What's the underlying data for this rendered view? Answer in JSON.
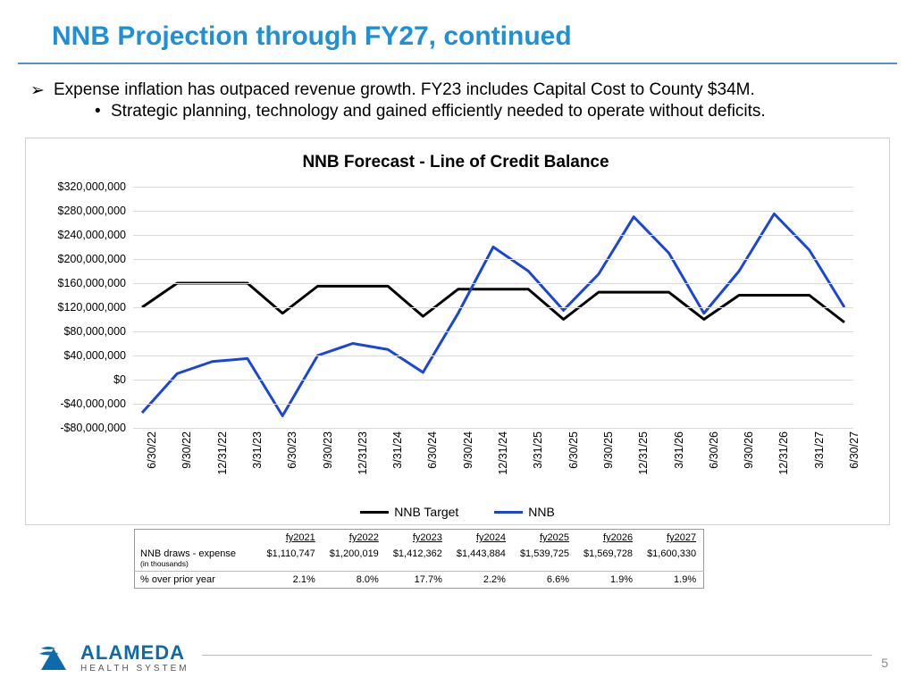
{
  "title": "NNB Projection through FY27, continued",
  "title_color": "#1f8fd6",
  "rule_color": "#5b8fc9",
  "bullets": {
    "b1": "Expense inflation has outpaced revenue growth. FY23 includes Capital Cost to County $34M.",
    "b2": "Strategic planning, technology and gained efficiently needed to operate without deficits."
  },
  "chart": {
    "title": "NNB Forecast - Line of Credit Balance",
    "title_font_size": 19,
    "y_min": -80000000,
    "y_max": 320000000,
    "y_ticks": [
      {
        "v": 320000000,
        "label": "$320,000,000"
      },
      {
        "v": 280000000,
        "label": "$280,000,000"
      },
      {
        "v": 240000000,
        "label": "$240,000,000"
      },
      {
        "v": 200000000,
        "label": "$200,000,000"
      },
      {
        "v": 160000000,
        "label": "$160,000,000"
      },
      {
        "v": 120000000,
        "label": "$120,000,000"
      },
      {
        "v": 80000000,
        "label": "$80,000,000"
      },
      {
        "v": 40000000,
        "label": "$40,000,000"
      },
      {
        "v": 0,
        "label": "$0"
      },
      {
        "v": -40000000,
        "label": "-$40,000,000"
      },
      {
        "v": -80000000,
        "label": "-$80,000,000"
      }
    ],
    "x_labels": [
      "6/30/22",
      "9/30/22",
      "12/31/22",
      "3/31/23",
      "6/30/23",
      "9/30/23",
      "12/31/23",
      "3/31/24",
      "6/30/24",
      "9/30/24",
      "12/31/24",
      "3/31/25",
      "6/30/25",
      "9/30/25",
      "12/31/25",
      "3/31/26",
      "6/30/26",
      "9/30/26",
      "12/31/26",
      "3/31/27",
      "6/30/27"
    ],
    "series": {
      "target": {
        "label": "NNB Target",
        "color": "#000000",
        "width": 3,
        "values": [
          120000000,
          160000000,
          160000000,
          160000000,
          110000000,
          155000000,
          155000000,
          155000000,
          105000000,
          150000000,
          150000000,
          150000000,
          100000000,
          145000000,
          145000000,
          145000000,
          100000000,
          140000000,
          140000000,
          140000000,
          95000000
        ]
      },
      "nnb": {
        "label": "NNB",
        "color": "#1846d6",
        "width": 3,
        "values": [
          -55000000,
          10000000,
          30000000,
          35000000,
          -60000000,
          40000000,
          60000000,
          50000000,
          12000000,
          110000000,
          220000000,
          180000000,
          115000000,
          175000000,
          270000000,
          210000000,
          110000000,
          180000000,
          275000000,
          215000000,
          120000000
        ]
      }
    },
    "grid_color": "#d9d9d9",
    "axis_font_size": 12.5
  },
  "table": {
    "headers": [
      "fy2021",
      "fy2022",
      "fy2023",
      "fy2024",
      "fy2025",
      "fy2026",
      "fy2027"
    ],
    "row1_label": "NNB draws - expense",
    "row1_sub": "(in thousands)",
    "row1": [
      "$1,110,747",
      "$1,200,019",
      "$1,412,362",
      "$1,443,884",
      "$1,539,725",
      "$1,569,728",
      "$1,600,330"
    ],
    "row2_label": "% over prior year",
    "row2": [
      "2.1%",
      "8.0%",
      "17.7%",
      "2.2%",
      "6.6%",
      "1.9%",
      "1.9%"
    ]
  },
  "footer": {
    "logo_name": "ALAMEDA",
    "logo_tag": "HEALTH SYSTEM",
    "logo_color": "#0e6aa8",
    "page": "5"
  }
}
